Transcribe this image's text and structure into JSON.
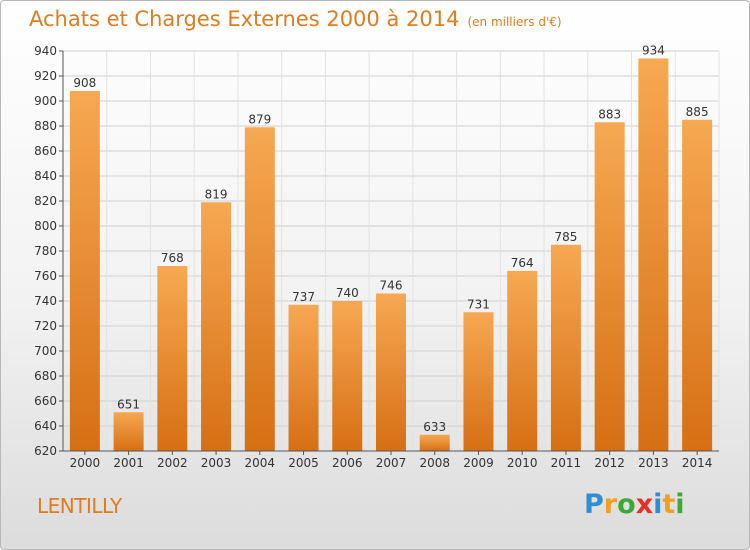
{
  "header": {
    "title": "Achats et Charges Externes 2000 à 2014",
    "subtitle": "(en milliers d'€)"
  },
  "footer": {
    "location": "LENTILLY",
    "brand": "Proxiti",
    "brand_letters": [
      {
        "ch": "P",
        "color": "#2e8fd6"
      },
      {
        "ch": "r",
        "color": "#f0a020"
      },
      {
        "ch": "o",
        "color": "#3aaa35"
      },
      {
        "ch": "x",
        "color": "#e63025"
      },
      {
        "ch": "i",
        "color": "#2e8fd6"
      },
      {
        "ch": "t",
        "color": "#f0a020"
      },
      {
        "ch": "i",
        "color": "#3aaa35"
      }
    ]
  },
  "chart_data": {
    "type": "bar",
    "title": "Achats et Charges Externes 2000 à 2014",
    "subtitle": "(en milliers d'€)",
    "categories": [
      "2000",
      "2001",
      "2002",
      "2003",
      "2004",
      "2005",
      "2006",
      "2007",
      "2008",
      "2009",
      "2010",
      "2011",
      "2012",
      "2013",
      "2014"
    ],
    "values": [
      908,
      651,
      768,
      819,
      879,
      737,
      740,
      746,
      633,
      731,
      764,
      785,
      883,
      934,
      885
    ],
    "ylim": [
      620,
      940
    ],
    "yticks": [
      620,
      640,
      660,
      680,
      700,
      720,
      740,
      760,
      780,
      800,
      820,
      840,
      860,
      880,
      900,
      920,
      940
    ],
    "xlabel": "",
    "ylabel": "",
    "grid": true,
    "data_labels": true,
    "colors": {
      "bar_top": "#f7a852",
      "bar_bottom": "#d66f14",
      "label": "#333333",
      "axis": "#555555"
    }
  }
}
